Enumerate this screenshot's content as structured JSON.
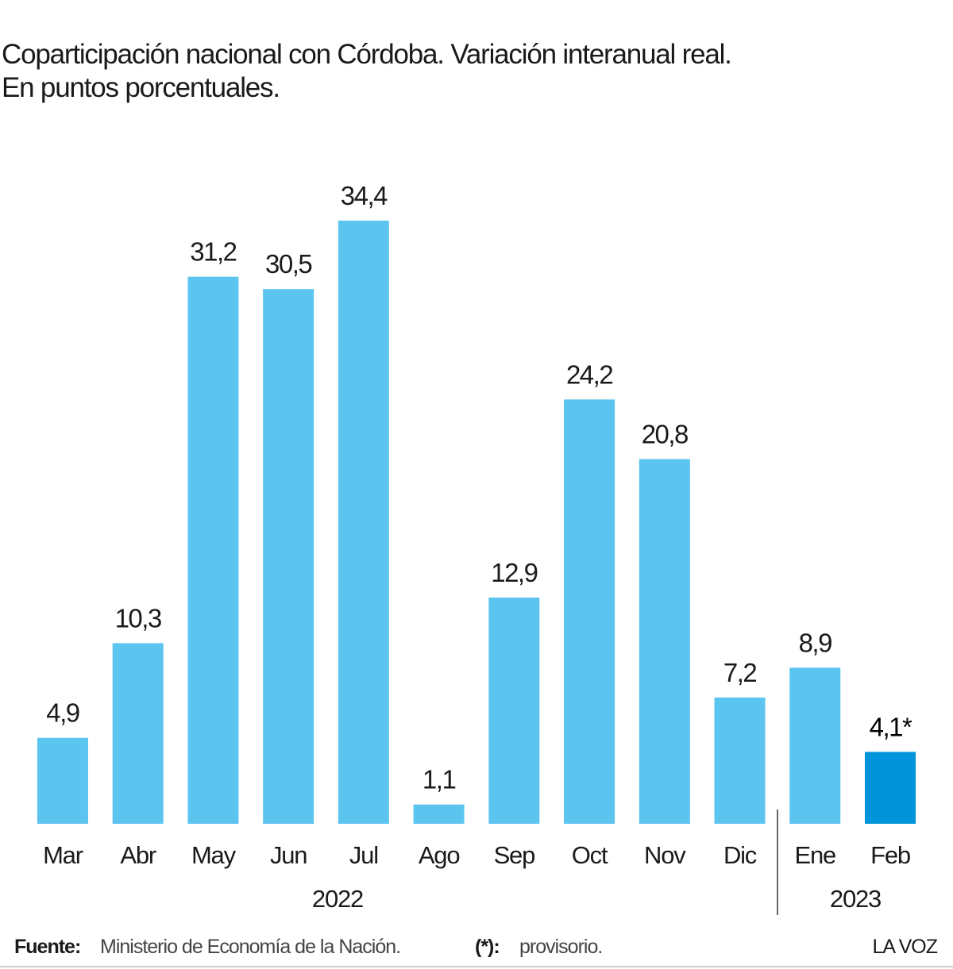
{
  "chart_data": {
    "type": "bar",
    "title": "Coparticipación nacional con Córdoba. Variación interanual real.",
    "subtitle": "En puntos porcentuales.",
    "categories": [
      "Mar",
      "Abr",
      "May",
      "Jun",
      "Jul",
      "Ago",
      "Sep",
      "Oct",
      "Nov",
      "Dic",
      "Ene",
      "Feb"
    ],
    "values": [
      4.9,
      10.3,
      31.2,
      30.5,
      34.4,
      1.1,
      12.9,
      24.2,
      20.8,
      7.2,
      8.9,
      4.1
    ],
    "value_labels": [
      "4,9",
      "10,3",
      "31,2",
      "30,5",
      "34,4",
      "1,1",
      "12,9",
      "24,2",
      "20,8",
      "7,2",
      "8,9",
      "4,1*"
    ],
    "colors": [
      "#5bc5f0",
      "#5bc5f0",
      "#5bc5f0",
      "#5bc5f0",
      "#5bc5f0",
      "#5bc5f0",
      "#5bc5f0",
      "#5bc5f0",
      "#5bc5f0",
      "#5bc5f0",
      "#5bc5f0",
      "#0095da"
    ],
    "year_labels": [
      "2022",
      "2023"
    ],
    "source_label": "Fuente:",
    "source": "Ministerio de Economía de la Nación.",
    "note_label": "(*):",
    "note": "provisorio.",
    "brand": "LA VOZ"
  }
}
